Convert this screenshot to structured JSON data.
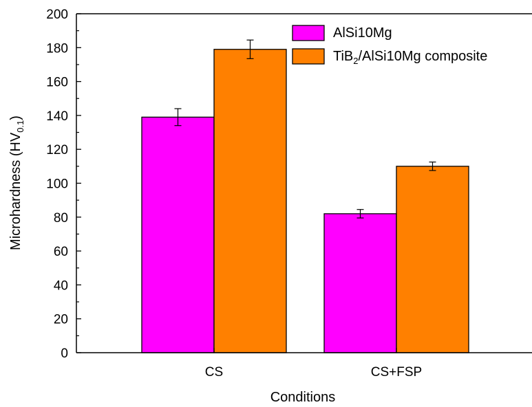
{
  "chart_data": {
    "type": "bar",
    "categories": [
      "CS",
      "CS+FSP"
    ],
    "series": [
      {
        "name": "AlSi10Mg",
        "values": [
          139,
          82
        ],
        "errors": [
          5,
          2.5
        ],
        "color": "#ff00ff"
      },
      {
        "name": "TiB2/AlSi10Mg composite",
        "values": [
          179,
          110
        ],
        "errors": [
          5.5,
          2.5
        ],
        "color": "#ff8000"
      }
    ],
    "legend_parts": [
      {
        "main": "AlSi10Mg"
      },
      {
        "main": "TiB",
        "sub": "2",
        "rest": "/AlSi10Mg composite"
      }
    ],
    "xlabel": "Conditions",
    "ylabel": {
      "main": "Microhardness (HV",
      "sub": "0.1",
      "rest": ")"
    },
    "ylim": [
      0,
      200
    ],
    "yticks": [
      0,
      20,
      40,
      60,
      80,
      100,
      120,
      140,
      160,
      180,
      200
    ],
    "grid": false,
    "legend_position": "top-right"
  }
}
